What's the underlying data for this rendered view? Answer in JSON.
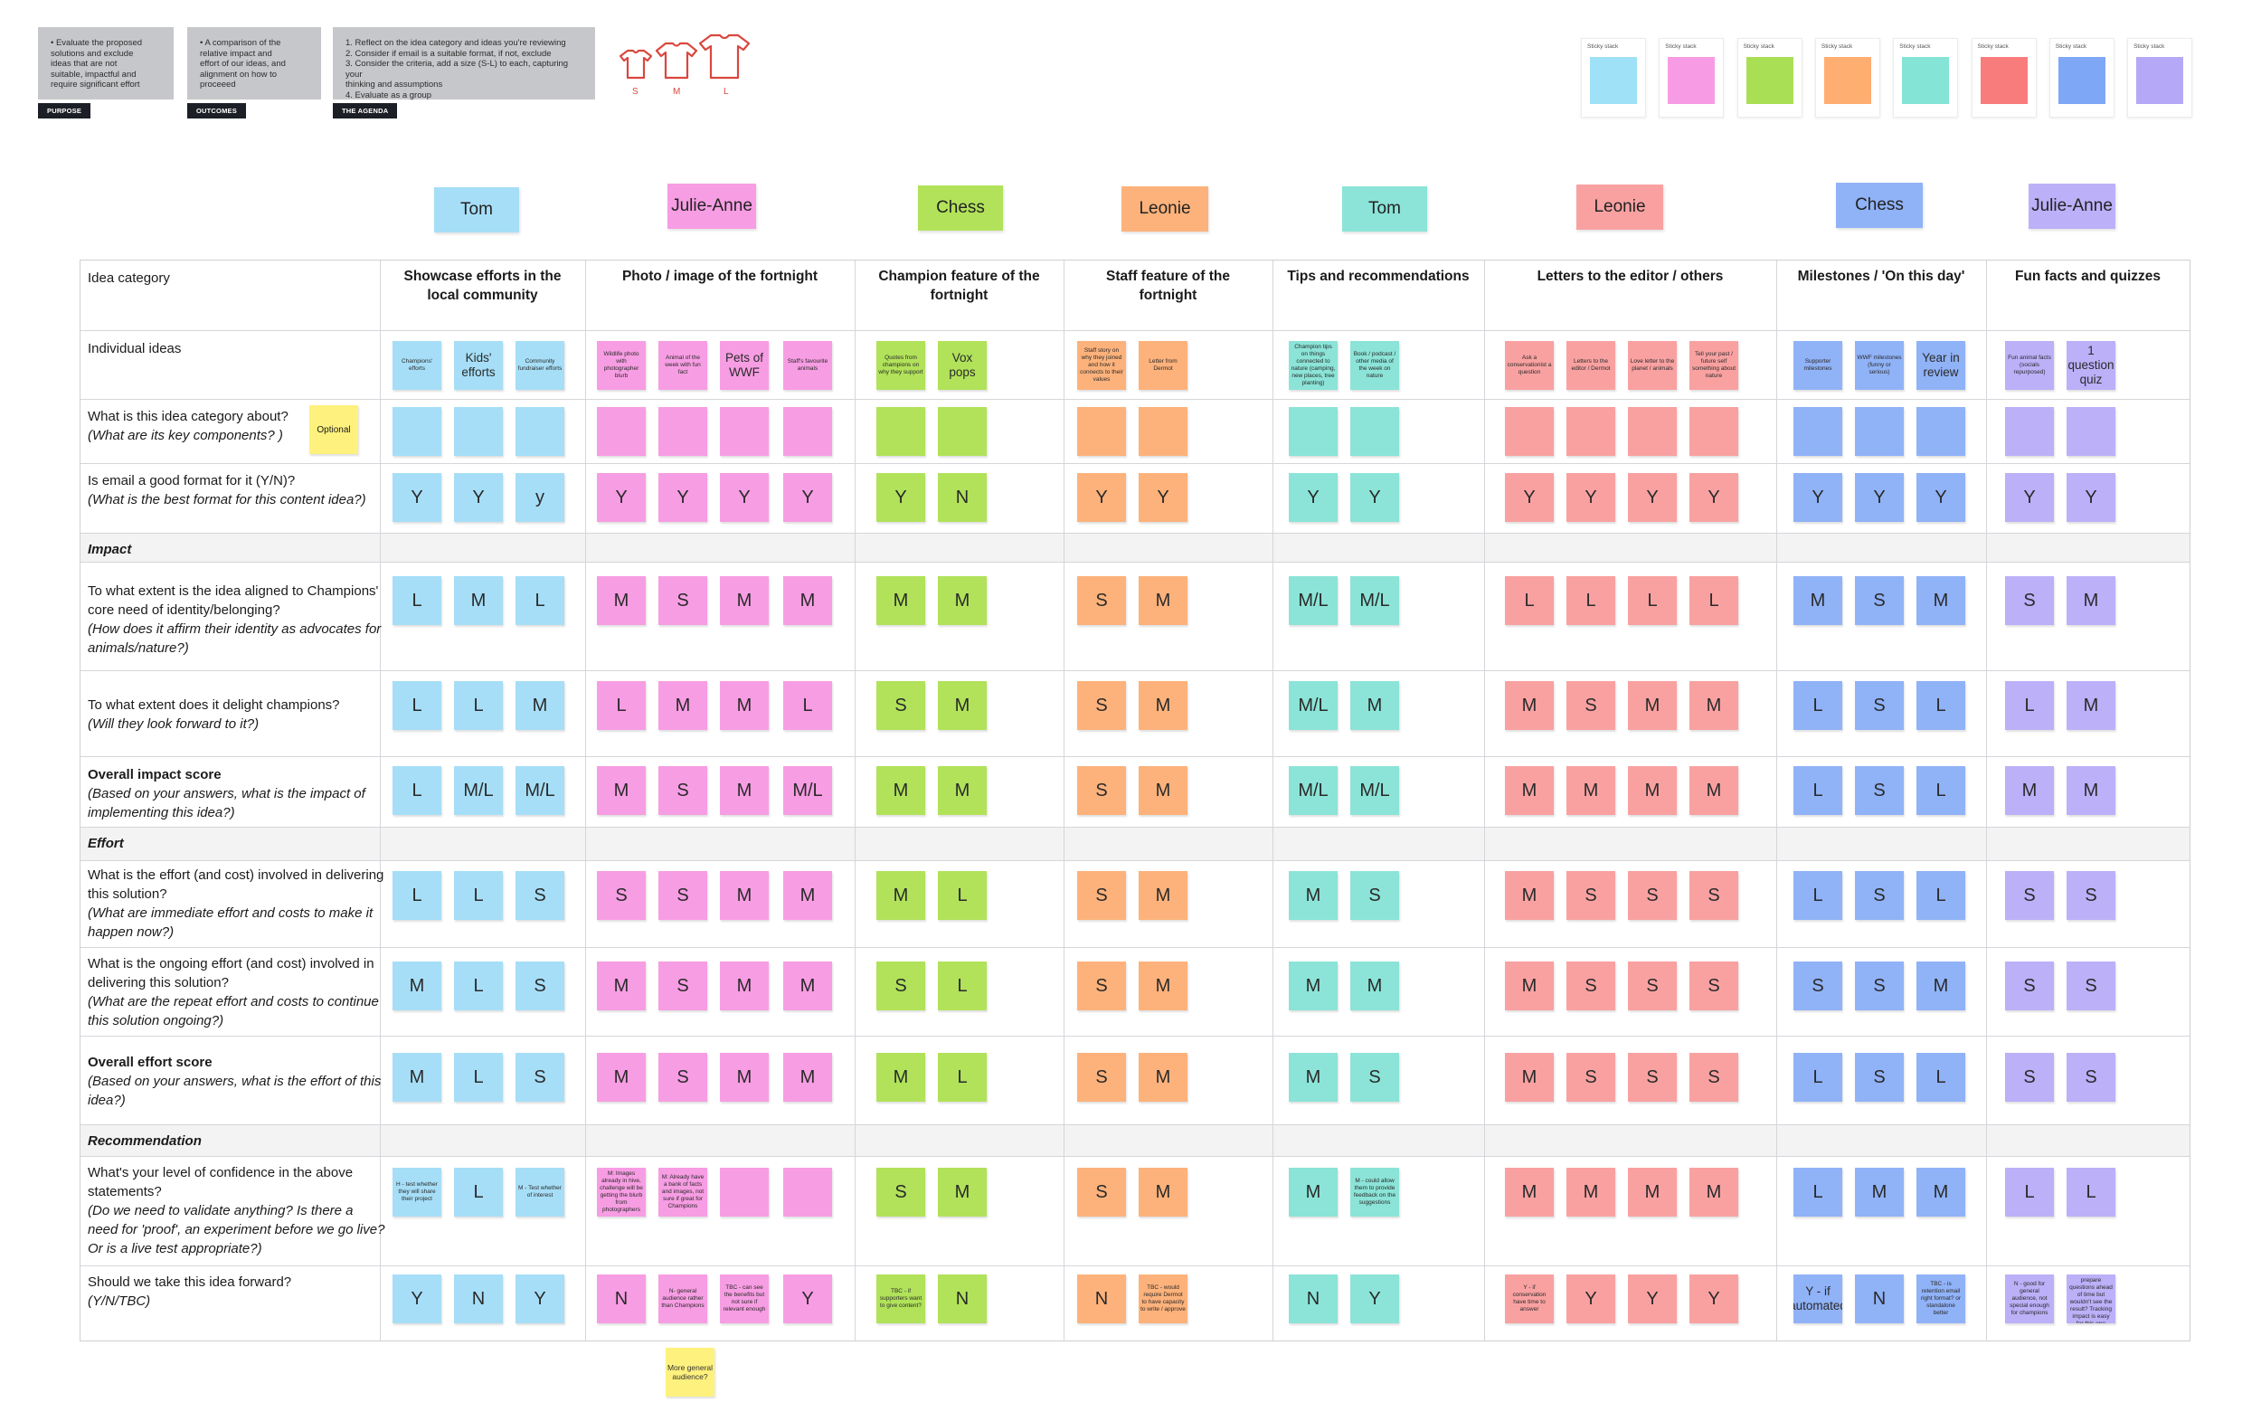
{
  "top_cards": [
    {
      "text": "•  Evaluate the proposed\n    solutions and exclude\n    ideas that are not\n    suitable, impactful and\n    require significant effort",
      "tag": "PURPOSE"
    },
    {
      "text": "•  A comparison of the\n    relative impact and\n    effort of our ideas, and\n    alignment on how to\n    proceeed",
      "tag": "OUTCOMES"
    },
    {
      "text": "1.  Reflect on the idea category and ideas you're reviewing\n2.  Consider if email is a suitable format, if not, exclude\n3.  Consider the criteria, add a size (S-L) to each, capturing your\n    thinking and assumptions\n4.  Evaluate as a group",
      "tag": "THE AGENDA"
    }
  ],
  "shirt_labels": [
    "S",
    "M",
    "L"
  ],
  "sticky_stacks": [
    {
      "label": "Sticky stack",
      "color": "#9fe1f6"
    },
    {
      "label": "Sticky stack",
      "color": "#f79ce4"
    },
    {
      "label": "Sticky stack",
      "color": "#a9df55"
    },
    {
      "label": "Sticky stack",
      "color": "#ffae72"
    },
    {
      "label": "Sticky stack",
      "color": "#84e4d5"
    },
    {
      "label": "Sticky stack",
      "color": "#f97c7c"
    },
    {
      "label": "Sticky stack",
      "color": "#7ea7f6"
    },
    {
      "label": "Sticky stack",
      "color": "#b5a8f6"
    }
  ],
  "colors": {
    "blue": "#a6def7",
    "pink": "#f79de3",
    "green": "#b1e25a",
    "orange": "#fdb27b",
    "teal": "#8be4d7",
    "red": "#f9a1a1",
    "indigo": "#90b2f7",
    "purple": "#bcb0f8"
  },
  "people": [
    {
      "name": "Tom",
      "color": "#a6def7"
    },
    {
      "name": "Julie-Anne",
      "color": "#f79de3"
    },
    {
      "name": "Chess",
      "color": "#b1e25a"
    },
    {
      "name": "Leonie",
      "color": "#fdb27b"
    },
    {
      "name": "Tom",
      "color": "#8be4d7"
    },
    {
      "name": "Leonie",
      "color": "#f9a1a1"
    },
    {
      "name": "Chess",
      "color": "#90b2f7"
    },
    {
      "name": "Julie-Anne",
      "color": "#bcb0f8"
    }
  ],
  "table": {
    "idea_category_label": "Idea category",
    "categories": [
      "Showcase efforts in the\nlocal community",
      "Photo / image of the fortnight",
      "Champion feature of the\nfortnight",
      "Staff feature of the\nfortnight",
      "Tips and recommendations",
      "Letters to the editor / others",
      "Milestones / 'On this day'",
      "Fun facts and quizzes"
    ],
    "rows": {
      "ideas": {
        "label": "Individual ideas"
      },
      "about": {
        "label": "What is this idea category about?",
        "sub": "(What are its key components? )",
        "optional": "Optional"
      },
      "email": {
        "label": "Is email a good format for it (Y/N)?",
        "sub": "(What is the best format for this content idea?)"
      },
      "impact_head": {
        "label": "Impact"
      },
      "aligned": {
        "label": "To what extent is the idea aligned to Champions' core need of identity/belonging?",
        "sub": "(How does it affirm their identity as advocates for animals/nature?)"
      },
      "delight": {
        "label": "To what extent does it delight champions?",
        "sub": "(Will they look forward to it?)"
      },
      "overall_impact": {
        "label": "Overall impact score",
        "sub": "(Based on your answers, what is the impact of implementing this idea?)"
      },
      "effort_head": {
        "label": "Effort"
      },
      "effort_now": {
        "label": "What is the effort (and cost) involved in delivering this solution?",
        "sub": "(What are immediate effort and costs to make it happen now?)"
      },
      "effort_ongoing": {
        "label": "What is the ongoing effort (and cost) involved in delivering this solution?",
        "sub": "(What are the repeat effort and costs to continue this solution ongoing?)"
      },
      "overall_effort": {
        "label": "Overall effort score",
        "sub": "(Based on your answers, what is the effort of this idea?)"
      },
      "recommendation_head": {
        "label": "Recommendation"
      },
      "confidence": {
        "label": "What's your level of confidence in the above statements?",
        "sub": "(Do we need to validate anything? Is there a need for 'proof', an experiment before we go live? Or is a live test appropriate?)"
      },
      "forward": {
        "label": "Should we take this idea forward?",
        "sub": "(Y/N/TBC)"
      }
    }
  },
  "notes": {
    "ideas": [
      [
        "Champions' efforts",
        "Kids' efforts",
        "Community fundraiser efforts"
      ],
      [
        "Wildlife photo with photographer blurb",
        "Animal of the week with fun fact",
        "Pets of WWF",
        "Staff's favourite animals"
      ],
      [
        "Quotes from champions on why they support",
        "Vox pops"
      ],
      [
        "Staff story on why they joined and how it connects to their values",
        "Letter from Dermot"
      ],
      [
        "Champion tips on things connected to nature (camping, new places, tree planting)",
        "Book / podcast / other media of the week on nature"
      ],
      [
        "Ask a conservationist a question",
        "Letters to the editor / Dermot",
        "Love letter to the planet / animals",
        "Tell your past / future self something about nature"
      ],
      [
        "Supporter milestones",
        "WWF milestones (funny or serious)",
        "Year in review"
      ],
      [
        "Fun animal facts (socials repurposed)",
        "1 question quiz"
      ]
    ],
    "email": [
      [
        "Y",
        "Y",
        "y"
      ],
      [
        "Y",
        "Y",
        "Y",
        "Y"
      ],
      [
        "Y",
        "N"
      ],
      [
        "Y",
        "Y"
      ],
      [
        "Y",
        "Y"
      ],
      [
        "Y",
        "Y",
        "Y",
        "Y"
      ],
      [
        "Y",
        "Y",
        "Y"
      ],
      [
        "Y",
        "Y"
      ]
    ],
    "aligned": [
      [
        "L",
        "M",
        "L"
      ],
      [
        "M",
        "S",
        "M",
        "M"
      ],
      [
        "M",
        "M"
      ],
      [
        "S",
        "M"
      ],
      [
        "M/L",
        "M/L"
      ],
      [
        "L",
        "L",
        "L",
        "L"
      ],
      [
        "M",
        "S",
        "M"
      ],
      [
        "S",
        "M"
      ]
    ],
    "delight": [
      [
        "L",
        "L",
        "M"
      ],
      [
        "L",
        "M",
        "M",
        "L"
      ],
      [
        "S",
        "M"
      ],
      [
        "S",
        "M"
      ],
      [
        "M/L",
        "M"
      ],
      [
        "M",
        "S",
        "M",
        "M"
      ],
      [
        "L",
        "S",
        "L"
      ],
      [
        "L",
        "M"
      ]
    ],
    "overall_impact": [
      [
        "L",
        "M/L",
        "M/L"
      ],
      [
        "M",
        "S",
        "M",
        "M/L"
      ],
      [
        "M",
        "M"
      ],
      [
        "S",
        "M"
      ],
      [
        "M/L",
        "M/L"
      ],
      [
        "M",
        "M",
        "M",
        "M"
      ],
      [
        "L",
        "S",
        "L"
      ],
      [
        "M",
        "M"
      ]
    ],
    "effort_now": [
      [
        "L",
        "L",
        "S"
      ],
      [
        "S",
        "S",
        "M",
        "M"
      ],
      [
        "M",
        "L"
      ],
      [
        "S",
        "M"
      ],
      [
        "M",
        "S"
      ],
      [
        "M",
        "S",
        "S",
        "S"
      ],
      [
        "L",
        "S",
        "L"
      ],
      [
        "S",
        "S"
      ]
    ],
    "effort_ongoing": [
      [
        "M",
        "L",
        "S"
      ],
      [
        "M",
        "S",
        "M",
        "M"
      ],
      [
        "S",
        "L"
      ],
      [
        "S",
        "M"
      ],
      [
        "M",
        "M"
      ],
      [
        "M",
        "S",
        "S",
        "S"
      ],
      [
        "S",
        "S",
        "M"
      ],
      [
        "S",
        "S"
      ]
    ],
    "overall_effort": [
      [
        "M",
        "L",
        "S"
      ],
      [
        "M",
        "S",
        "M",
        "M"
      ],
      [
        "M",
        "L"
      ],
      [
        "S",
        "M"
      ],
      [
        "M",
        "S"
      ],
      [
        "M",
        "S",
        "S",
        "S"
      ],
      [
        "L",
        "S",
        "L"
      ],
      [
        "S",
        "S"
      ]
    ],
    "confidence": [
      [
        "H - test whether they will share their project",
        "L",
        "M - Test whether of interest"
      ],
      [
        "M: Images already in hive, challenge will be getting the blurb from photographers",
        "M: Already have a bank of facts and images, not sure if great for Champions",
        "",
        ""
      ],
      [
        "S",
        "M"
      ],
      [
        "S",
        "M"
      ],
      [
        "M",
        "M - could allow them to provide feedback on the suggestions"
      ],
      [
        "M",
        "M",
        "M",
        "M"
      ],
      [
        "L",
        "M",
        "M"
      ],
      [
        "L",
        "L"
      ]
    ],
    "forward": [
      [
        "Y",
        "N",
        "Y"
      ],
      [
        "N",
        "N- general audience rather than Champions",
        "TBC - can see the benefits but not sure if relevant enough",
        "Y"
      ],
      [
        "TBC - if supporters want to give content?",
        "N"
      ],
      [
        "N",
        "TBC - would require Dermot to have capacity to write / approve"
      ],
      [
        "N",
        "Y"
      ],
      [
        "Y - if conservation have time to answer",
        "Y",
        "Y",
        "Y"
      ],
      [
        "Y - if automated",
        "N",
        "TBC - is retention email right format? or standalone better"
      ],
      [
        "N - good for general audience, not special enough for champions",
        "TBC - could prepare questions ahead of time but wouldn't see the result? Tracking impact is easy for this one"
      ]
    ]
  },
  "extra_note": "More general audience?"
}
